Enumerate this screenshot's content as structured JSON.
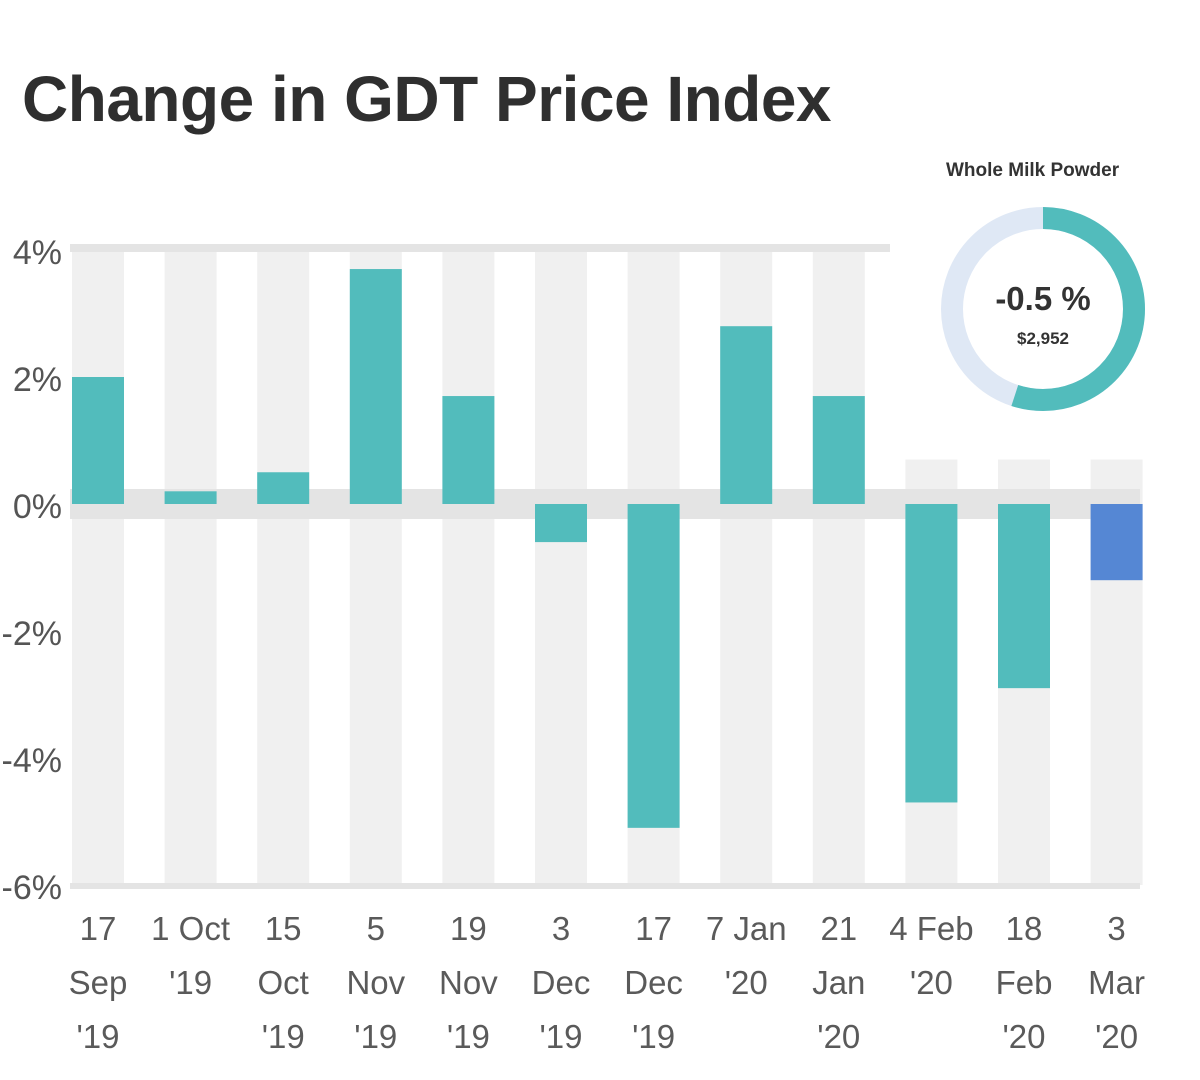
{
  "title": "Change in GDT Price Index",
  "donut": {
    "label": "Whole Milk Powder",
    "value_text": "-0.5 %",
    "price_text": "$2,952",
    "fraction": 0.55,
    "colors": {
      "fill": "#52bcbc",
      "track": "#dfe8f5"
    }
  },
  "colors": {
    "bar": "#52bcbc",
    "highlight": "#5587d4",
    "column_bg": "#f0f0f0",
    "zero_band": "#e4e4e4",
    "axis_text": "#555555",
    "tick_text": "#5a5a5a"
  },
  "chart_data": {
    "type": "bar",
    "title": "Change in GDT Price Index",
    "xlabel": "",
    "ylabel": "",
    "ylim": [
      -6,
      4
    ],
    "yticks": [
      4,
      2,
      0,
      -2,
      -4,
      -6
    ],
    "ytick_labels": [
      "4%",
      "2%",
      "0%",
      "-2%",
      "-4%",
      "-6%"
    ],
    "grid": false,
    "categories": [
      [
        "17",
        "Sep",
        "'19"
      ],
      [
        "1 Oct",
        "'19"
      ],
      [
        "15",
        "Oct",
        "'19"
      ],
      [
        "5",
        "Nov",
        "'19"
      ],
      [
        "19",
        "Nov",
        "'19"
      ],
      [
        "3",
        "Dec",
        "'19"
      ],
      [
        "17",
        "Dec",
        "'19"
      ],
      [
        "7 Jan",
        "'20"
      ],
      [
        "21",
        "Jan",
        "'20"
      ],
      [
        "4 Feb",
        "'20"
      ],
      [
        "18",
        "Feb",
        "'20"
      ],
      [
        "3",
        "Mar",
        "'20"
      ]
    ],
    "values": [
      2.0,
      0.2,
      0.5,
      3.7,
      1.7,
      -0.6,
      -5.1,
      2.8,
      1.7,
      -4.7,
      -2.9,
      -1.2
    ],
    "highlight_index": 11
  }
}
